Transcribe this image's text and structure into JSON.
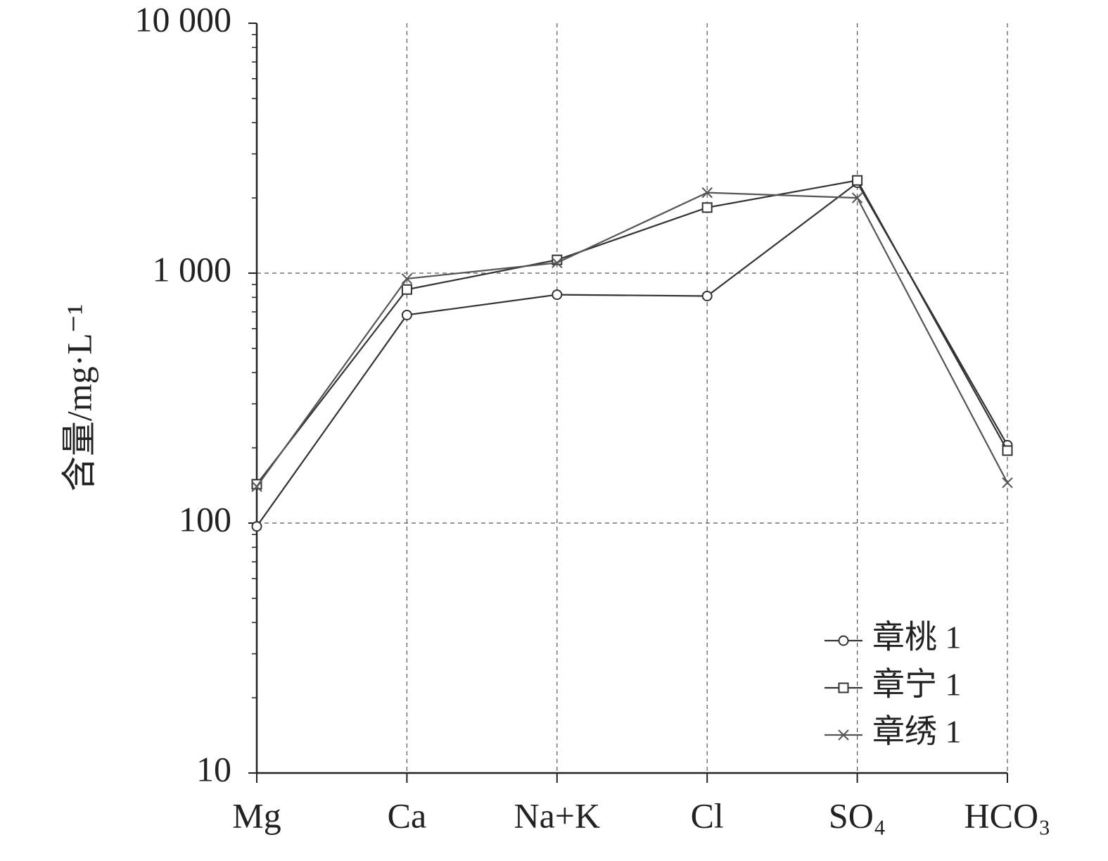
{
  "chart_data": {
    "type": "line",
    "y_label": "含量/mg·L⁻¹",
    "categories": [
      "Mg",
      "Ca",
      "Na+K",
      "Cl",
      "SO₄",
      "HCO₃"
    ],
    "series": [
      {
        "name": "章桃 1",
        "color": "#333333",
        "marker": "circle",
        "values": [
          97,
          680,
          820,
          810,
          2300,
          205
        ]
      },
      {
        "name": "章宁 1",
        "color": "#333333",
        "marker": "square",
        "values": [
          143,
          860,
          1130,
          1830,
          2350,
          195
        ]
      },
      {
        "name": "章绣 1",
        "color": "#555555",
        "marker": "x",
        "values": [
          140,
          950,
          1100,
          2100,
          2000,
          145
        ]
      }
    ],
    "log_y": true,
    "ylim": [
      10,
      10000
    ],
    "yticks": [
      10,
      100,
      {
        "value": 1000,
        "label": "1 000"
      },
      {
        "value": 10000,
        "label": "10 000"
      }
    ],
    "yminorticks": [
      20,
      30,
      40,
      50,
      60,
      70,
      80,
      90,
      200,
      300,
      400,
      500,
      600,
      700,
      800,
      900,
      2000,
      3000,
      4000,
      5000,
      6000,
      7000,
      8000,
      9000
    ],
    "grid": true,
    "legend": "lower right"
  }
}
